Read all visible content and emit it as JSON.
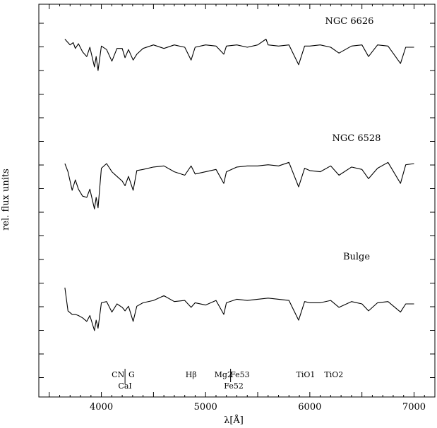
{
  "chart_data": {
    "type": "line",
    "xlabel": "λ[Å]",
    "ylabel": "rel. flux units",
    "xlim": [
      3400,
      7200
    ],
    "xticks": [
      4000,
      5000,
      6000,
      7000
    ],
    "tick_labels": [
      "4000",
      "5000",
      "6000",
      "7000"
    ],
    "series": [
      {
        "name": "NGC 6626",
        "baseline": 1.0,
        "x": [
          3650,
          3700,
          3730,
          3750,
          3780,
          3820,
          3860,
          3890,
          3934,
          3950,
          3968,
          4000,
          4050,
          4101,
          4150,
          4200,
          4227,
          4260,
          4305,
          4340,
          4400,
          4500,
          4600,
          4700,
          4800,
          4861,
          4900,
          5000,
          5100,
          5175,
          5200,
          5300,
          5400,
          5500,
          5580,
          5600,
          5700,
          5800,
          5893,
          5950,
          6000,
          6100,
          6200,
          6280,
          6400,
          6500,
          6563,
          6650,
          6750,
          6870,
          6920,
          7000
        ],
        "y": [
          0.35,
          0.1,
          0.2,
          -0.05,
          0.15,
          -0.2,
          -0.4,
          0.0,
          -0.85,
          -0.4,
          -1.0,
          0.05,
          -0.1,
          -0.6,
          -0.05,
          -0.05,
          -0.45,
          -0.1,
          -0.55,
          -0.3,
          -0.05,
          0.1,
          -0.05,
          0.1,
          0.0,
          -0.55,
          0.0,
          0.1,
          0.05,
          -0.3,
          0.05,
          0.1,
          0.0,
          0.1,
          0.35,
          0.1,
          0.05,
          0.1,
          -0.75,
          0.05,
          0.05,
          0.1,
          0.0,
          -0.25,
          0.05,
          0.1,
          -0.4,
          0.1,
          0.05,
          -0.7,
          0.0,
          0.0
        ]
      },
      {
        "name": "NGC 6528",
        "baseline": 1.0,
        "x": [
          3650,
          3680,
          3720,
          3750,
          3780,
          3820,
          3860,
          3890,
          3934,
          3950,
          3968,
          4000,
          4050,
          4101,
          4150,
          4200,
          4227,
          4260,
          4305,
          4340,
          4400,
          4500,
          4600,
          4700,
          4800,
          4861,
          4900,
          5000,
          5100,
          5175,
          5200,
          5300,
          5400,
          5500,
          5600,
          5700,
          5800,
          5893,
          5950,
          6000,
          6100,
          6200,
          6280,
          6400,
          6500,
          6563,
          6650,
          6750,
          6870,
          6920,
          7000
        ],
        "y": [
          0.0,
          -0.35,
          -1.15,
          -0.7,
          -1.1,
          -1.4,
          -1.45,
          -1.1,
          -1.95,
          -1.45,
          -1.9,
          -0.2,
          0.0,
          -0.35,
          -0.55,
          -0.75,
          -0.95,
          -0.55,
          -1.15,
          -0.3,
          -0.25,
          -0.15,
          -0.1,
          -0.35,
          -0.5,
          -0.1,
          -0.45,
          -0.35,
          -0.25,
          -0.85,
          -0.35,
          -0.15,
          -0.1,
          -0.1,
          -0.05,
          -0.1,
          0.05,
          -1.0,
          -0.2,
          -0.3,
          -0.35,
          -0.1,
          -0.5,
          -0.15,
          -0.25,
          -0.65,
          -0.2,
          0.05,
          -0.85,
          -0.05,
          0.0
        ]
      },
      {
        "name": "Bulge",
        "baseline": 1.0,
        "x": [
          3650,
          3680,
          3720,
          3750,
          3780,
          3820,
          3860,
          3890,
          3934,
          3950,
          3968,
          4000,
          4050,
          4101,
          4150,
          4200,
          4227,
          4260,
          4305,
          4340,
          4400,
          4500,
          4600,
          4700,
          4800,
          4861,
          4900,
          5000,
          5100,
          5175,
          5200,
          5300,
          5400,
          5500,
          5600,
          5700,
          5800,
          5893,
          5950,
          6000,
          6100,
          6200,
          6280,
          6400,
          6500,
          6563,
          6650,
          6750,
          6870,
          6920,
          7000
        ],
        "y": [
          -0.3,
          -1.3,
          -1.45,
          -1.45,
          -1.5,
          -1.6,
          -1.75,
          -1.5,
          -2.15,
          -1.7,
          -2.05,
          -0.95,
          -0.9,
          -1.35,
          -1.0,
          -1.15,
          -1.3,
          -1.1,
          -1.75,
          -1.1,
          -0.95,
          -0.85,
          -0.65,
          -0.9,
          -0.85,
          -1.15,
          -0.95,
          -1.05,
          -0.85,
          -1.45,
          -0.95,
          -0.8,
          -0.85,
          -0.8,
          -0.75,
          -0.8,
          -0.85,
          -1.7,
          -0.9,
          -0.95,
          -0.95,
          -0.85,
          -1.15,
          -0.9,
          -1.0,
          -1.3,
          -0.95,
          -0.9,
          -1.35,
          -1.0,
          -1.0
        ]
      }
    ],
    "annotations": [
      {
        "text": "CN",
        "x": 4160,
        "row": 1
      },
      {
        "text": "G",
        "x": 4290,
        "row": 1
      },
      {
        "text": "CaI",
        "x": 4227,
        "row": 2
      },
      {
        "text": "Hβ",
        "x": 4861,
        "row": 1
      },
      {
        "text": "Mg2",
        "x": 5170,
        "row": 1
      },
      {
        "text": "Fe53",
        "x": 5330,
        "row": 1
      },
      {
        "text": "Fe52",
        "x": 5270,
        "row": 2
      },
      {
        "text": "TiO1",
        "x": 5960,
        "row": 1
      },
      {
        "text": "TiO2",
        "x": 6230,
        "row": 1
      }
    ]
  }
}
